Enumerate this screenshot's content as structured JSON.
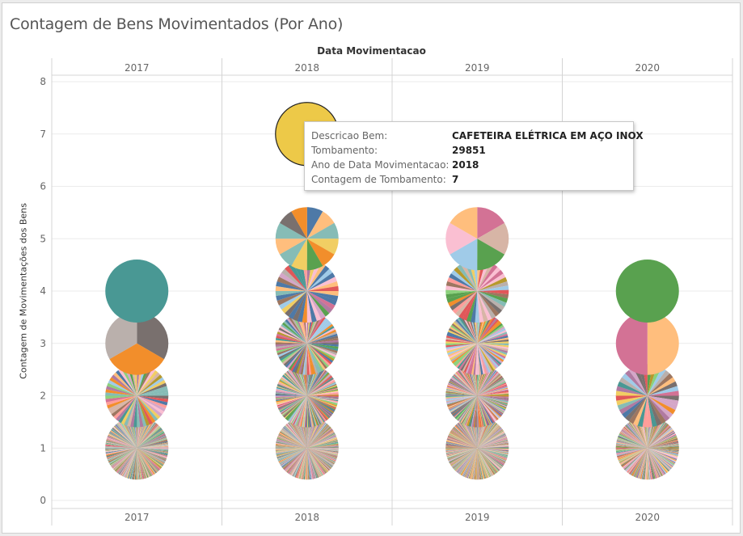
{
  "chart_data": {
    "type": "pie",
    "title": "Contagem de Bens Movimentados (Por Ano)",
    "column_header_title": "Data Movimentacao",
    "ylabel": "Contagem de Movimentações dos Bens",
    "ylim": [
      0,
      8
    ],
    "yticks": [
      "0",
      "1",
      "2",
      "3",
      "4",
      "5",
      "6",
      "7",
      "8"
    ],
    "columns": [
      "2017",
      "2018",
      "2019",
      "2020"
    ],
    "marks": [
      {
        "year": "2017",
        "count": 1,
        "slices": 400
      },
      {
        "year": "2017",
        "count": 2,
        "slices": 60
      },
      {
        "year": "2017",
        "count": 3,
        "slices": 3
      },
      {
        "year": "2017",
        "count": 4,
        "slices": 1
      },
      {
        "year": "2018",
        "count": 1,
        "slices": 500
      },
      {
        "year": "2018",
        "count": 2,
        "slices": 180
      },
      {
        "year": "2018",
        "count": 3,
        "slices": 90
      },
      {
        "year": "2018",
        "count": 4,
        "slices": 40
      },
      {
        "year": "2018",
        "count": 5,
        "slices": 12
      },
      {
        "year": "2018",
        "count": 7,
        "slices": 1
      },
      {
        "year": "2019",
        "count": 1,
        "slices": 500
      },
      {
        "year": "2019",
        "count": 2,
        "slices": 220
      },
      {
        "year": "2019",
        "count": 3,
        "slices": 100
      },
      {
        "year": "2019",
        "count": 4,
        "slices": 45
      },
      {
        "year": "2019",
        "count": 5,
        "slices": 6
      },
      {
        "year": "2020",
        "count": 1,
        "slices": 350
      },
      {
        "year": "2020",
        "count": 2,
        "slices": 40
      },
      {
        "year": "2020",
        "count": 3,
        "slices": 2
      },
      {
        "year": "2020",
        "count": 4,
        "slices": 1
      }
    ],
    "palette": [
      "#4E79A7",
      "#A0CBE8",
      "#F28E2B",
      "#FFBE7D",
      "#59A14F",
      "#8CD17D",
      "#B6992D",
      "#F1CE63",
      "#499894",
      "#86BCB6",
      "#E15759",
      "#FF9D9A",
      "#79706E",
      "#BAB0AC",
      "#D37295",
      "#FABFD2",
      "#B07AA1",
      "#D4A6C8",
      "#9D7660",
      "#D7B5A6"
    ],
    "special_colors": {
      "2017-4": [
        "#499894"
      ],
      "2017-3": [
        "#79706E",
        "#F28E2B",
        "#BAB0AC"
      ],
      "2018-7": [
        "#EDC948"
      ],
      "2019-5": [
        "#D37295",
        "#D7B5A6",
        "#59A14F",
        "#A0CBE8",
        "#FABFD2",
        "#FFBE7D"
      ],
      "2020-4": [
        "#59A14F"
      ],
      "2020-3": [
        "#FFBE7D",
        "#D37295"
      ]
    }
  },
  "tooltip": {
    "rows": [
      {
        "label": "Descricao Bem:",
        "value": "CAFETEIRA ELÉTRICA EM AÇO INOX"
      },
      {
        "label": "Tombamento:",
        "value": "29851"
      },
      {
        "label": "Ano de Data Movimentacao:",
        "value": "2018"
      },
      {
        "label": "Contagem de Tombamento:",
        "value": "7"
      }
    ]
  }
}
